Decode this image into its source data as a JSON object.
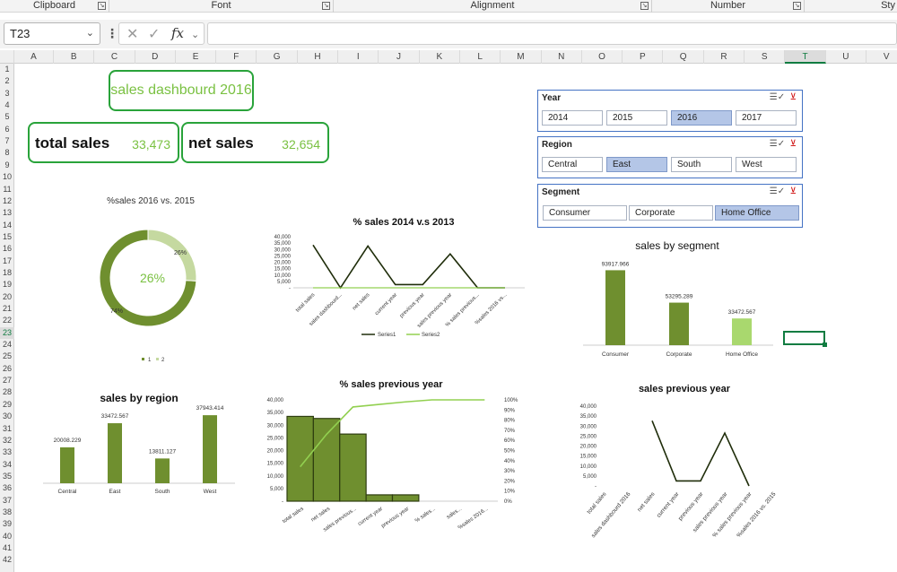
{
  "ribbon": {
    "groups": [
      {
        "label": "Clipboard",
        "launcher": true
      },
      {
        "label": "Font",
        "launcher": true
      },
      {
        "label": "Alignment",
        "launcher": true
      },
      {
        "label": "Number",
        "launcher": true
      },
      {
        "label": "Sty",
        "launcher": false
      }
    ]
  },
  "formula_bar": {
    "name_box": "T23",
    "formula": "",
    "fx_label": "fx",
    "cancel_glyph": "✕",
    "enter_glyph": "✓",
    "menu_glyph": "⋮"
  },
  "grid": {
    "columns": [
      "A",
      "B",
      "C",
      "D",
      "E",
      "F",
      "G",
      "H",
      "I",
      "J",
      "K",
      "L",
      "M",
      "N",
      "O",
      "P",
      "Q",
      "R",
      "S",
      "T",
      "U",
      "V"
    ],
    "rows": [
      "1",
      "2",
      "3",
      "4",
      "5",
      "6",
      "7",
      "8",
      "9",
      "10",
      "11",
      "12",
      "13",
      "14",
      "15",
      "16",
      "17",
      "18",
      "19",
      "20",
      "21",
      "22",
      "23",
      "24",
      "25",
      "26",
      "27",
      "28",
      "29",
      "30",
      "31",
      "32",
      "33",
      "34",
      "35",
      "36",
      "37",
      "38",
      "39",
      "40",
      "41",
      "42"
    ],
    "selected_column": "T",
    "selected_row": "23"
  },
  "dashboard": {
    "title": "sales dashbourd 2016",
    "total_sales_label": "total sales",
    "total_sales_value": "33,473",
    "net_sales_label": "net sales",
    "net_sales_value": "32,654"
  },
  "slicers": {
    "year": {
      "title": "Year",
      "items": [
        "2014",
        "2015",
        "2016",
        "2017"
      ],
      "selected": "2016"
    },
    "region": {
      "title": "Region",
      "items": [
        "Central",
        "East",
        "South",
        "West"
      ],
      "selected": "East"
    },
    "segment": {
      "title": "Segment",
      "items": [
        "Consumer",
        "Corporate",
        "Home Office"
      ],
      "selected": "Home Office"
    }
  },
  "colors": {
    "dark_green": "#6f8f2f",
    "light_green": "#c5d9a0",
    "bright_green": "#92d050",
    "line_green": "#7ac142",
    "line_dark": "#1f2d0a",
    "accent": "#107c41"
  },
  "chart_data": [
    {
      "id": "donut",
      "type": "pie",
      "title": "%sales 2016 vs. 2015",
      "center_label": "26%",
      "slices": [
        {
          "name": "1",
          "label": "74%",
          "value": 74,
          "color": "#6f8f2f"
        },
        {
          "name": "2",
          "label": "26%",
          "value": 26,
          "color": "#c5d9a0"
        }
      ],
      "legend": [
        "1",
        "2"
      ]
    },
    {
      "id": "sales2014",
      "type": "line",
      "title": "% sales 2014 v.s 2013",
      "categories": [
        "total sales",
        "sales dashbourd...",
        "net sales",
        "current year",
        "previous year",
        "sales previous year",
        "% sales previous...",
        "%sales 2016 vs..."
      ],
      "series": [
        {
          "name": "Series1",
          "values": [
            33473,
            0,
            32654,
            2500,
            2500,
            26500,
            0,
            0
          ],
          "color": "#1f2d0a"
        },
        {
          "name": "Series2",
          "values": [
            0,
            0,
            0,
            0,
            0,
            0,
            0,
            0
          ],
          "color": "#92d050"
        }
      ],
      "yticks": [
        "40,000",
        "35,000",
        "30,000",
        "25,000",
        "20,000",
        "15,000",
        "10,000",
        "5,000",
        "-"
      ],
      "ylim": [
        0,
        40000
      ]
    },
    {
      "id": "segment",
      "type": "bar",
      "title": "sales by segment",
      "categories": [
        "Consumer",
        "Corporate",
        "Home Office"
      ],
      "values": [
        93917.966,
        53295.289,
        33472.567
      ],
      "labels": [
        "93917.966",
        "53295.289",
        "33472.567"
      ],
      "colors": [
        "#6f8f2f",
        "#6f8f2f",
        "#a9d86e"
      ],
      "ylim": [
        0,
        100000
      ]
    },
    {
      "id": "region",
      "type": "bar",
      "title": "sales by region",
      "categories": [
        "Central",
        "East",
        "South",
        "West"
      ],
      "values": [
        20008.229,
        33472.567,
        13811.127,
        37943.414
      ],
      "labels": [
        "20008.229",
        "33472.567",
        "13811.127",
        "37943.414"
      ],
      "ylim": [
        0,
        42000
      ]
    },
    {
      "id": "pareto",
      "type": "bar",
      "title": "% sales previous year",
      "categories": [
        "total sales",
        "net sales",
        "sales previous...",
        "current year",
        "previous year",
        "% sales...",
        "sales...",
        "%sales 2016..."
      ],
      "values": [
        33473,
        32654,
        26500,
        2500,
        2500,
        0,
        0,
        0
      ],
      "cumulative_pct": [
        34,
        66,
        93,
        95.5,
        98,
        100,
        100,
        100
      ],
      "yticks": [
        "40,000",
        "35,000",
        "30,000",
        "25,000",
        "20,000",
        "15,000",
        "10,000",
        "5,000",
        "-"
      ],
      "y2ticks": [
        "100%",
        "90%",
        "80%",
        "70%",
        "60%",
        "50%",
        "40%",
        "30%",
        "20%",
        "10%",
        "0%"
      ],
      "ylim": [
        0,
        40000
      ],
      "y2lim": [
        0,
        100
      ]
    },
    {
      "id": "prevyear",
      "type": "line",
      "title": "sales previous year",
      "categories": [
        "total sales",
        "sales dashbourd 2016",
        "net sales",
        "current year",
        "previous year",
        "sales previous year",
        "% sales previous year",
        "%sales 2016 vs. 2015"
      ],
      "values": [
        null,
        null,
        32654,
        2500,
        2500,
        26500,
        0,
        null
      ],
      "yticks": [
        "40,000",
        "35,000",
        "30,000",
        "25,000",
        "20,000",
        "15,000",
        "10,000",
        "5,000",
        "-"
      ],
      "ylim": [
        0,
        40000
      ]
    }
  ]
}
